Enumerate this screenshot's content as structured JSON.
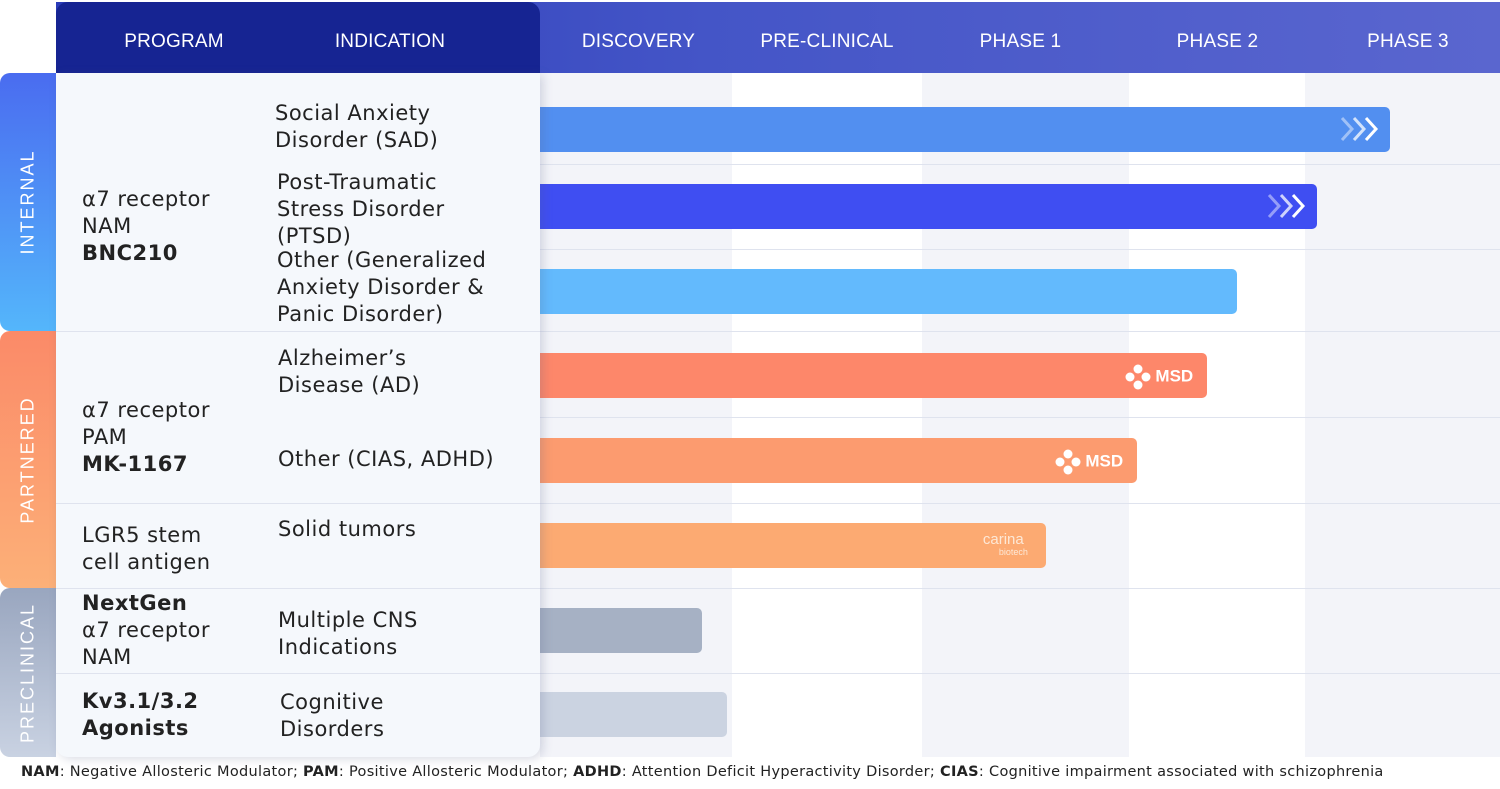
{
  "header": {
    "program": "PROGRAM",
    "indication": "INDICATION",
    "phases": [
      "DISCOVERY",
      "PRE-CLINICAL",
      "PHASE 1",
      "PHASE 2",
      "PHASE 3"
    ]
  },
  "categories": [
    {
      "label": "INTERNAL",
      "color_top": "#4a6cf0",
      "color_bottom": "#54b6fb"
    },
    {
      "label": "PARTNERED",
      "color_top": "#fb8a68",
      "color_bottom": "#fcb078"
    },
    {
      "label": "PRECLINICAL",
      "color_top": "#99a6bf",
      "color_bottom": "#c9d2e2"
    }
  ],
  "programs": [
    {
      "line1": "α7 receptor",
      "line2": "NAM",
      "name": "BNC210"
    },
    {
      "line1": "α7 receptor",
      "line2": "PAM",
      "name": "MK-1167"
    },
    {
      "line1": "LGR5 stem",
      "line2": "cell antigen"
    },
    {
      "name": "NextGen",
      "line1": "α7 receptor",
      "line2": "NAM"
    },
    {
      "name1": "Kv3.1/3.2",
      "name2": "Agonists"
    }
  ],
  "indications": [
    {
      "lines": [
        "Social Anxiety",
        "Disorder (SAD)"
      ]
    },
    {
      "lines": [
        "Post-Traumatic",
        "Stress Disorder",
        "(PTSD)"
      ]
    },
    {
      "lines": [
        "Other (Generalized",
        "Anxiety Disorder &",
        "Panic Disorder)"
      ]
    },
    {
      "lines": [
        "Alzheimer’s",
        "Disease (AD)"
      ]
    },
    {
      "lines": [
        "Other (CIAS, ADHD)"
      ]
    },
    {
      "lines": [
        "Solid tumors"
      ]
    },
    {
      "lines": [
        "Multiple CNS",
        "Indications"
      ]
    },
    {
      "lines": [
        "Cognitive",
        "Disorders"
      ]
    }
  ],
  "bars": [
    {
      "indication": "Social Anxiety Disorder (SAD)",
      "progress_pct_of_pipeline": 88.5,
      "color": "#528ff0",
      "marker": "ongoing-chevrons"
    },
    {
      "indication": "Post-Traumatic Stress Disorder (PTSD)",
      "progress_pct_of_pipeline": 80.9,
      "color": "#3f4ef2",
      "marker": "ongoing-chevrons"
    },
    {
      "indication": "Other (Generalized Anxiety Disorder & Panic Disorder)",
      "progress_pct_of_pipeline": 72.6,
      "color": "#63bafd"
    },
    {
      "indication": "Alzheimer’s Disease (AD)",
      "progress_pct_of_pipeline": 69.5,
      "color": "#fd876a",
      "partner": "MSD"
    },
    {
      "indication": "Other (CIAS, ADHD)",
      "progress_pct_of_pipeline": 62.2,
      "color": "#fc9b6f",
      "partner": "MSD"
    },
    {
      "indication": "Solid tumors",
      "progress_pct_of_pipeline": 52.7,
      "color": "#fcaa72",
      "partner": "carina",
      "partner_sub": "biotech"
    },
    {
      "indication": "Multiple CNS Indications",
      "progress_pct_of_pipeline": 16.9,
      "color": "#a6b1c4"
    },
    {
      "indication": "Cognitive Disorders",
      "progress_pct_of_pipeline": 19.5,
      "color": "#cbd3e1"
    }
  ],
  "footnote": {
    "terms": [
      {
        "abbr": "NAM",
        "def": ": Negative Allosteric Modulator; "
      },
      {
        "abbr": "PAM",
        "def": ": Positive Allosteric Modulator; "
      },
      {
        "abbr": "ADHD",
        "def": ": Attention Deficit Hyperactivity Disorder; "
      },
      {
        "abbr": "CIAS",
        "def": ": Cognitive impairment associated with schizophrenia"
      }
    ]
  }
}
